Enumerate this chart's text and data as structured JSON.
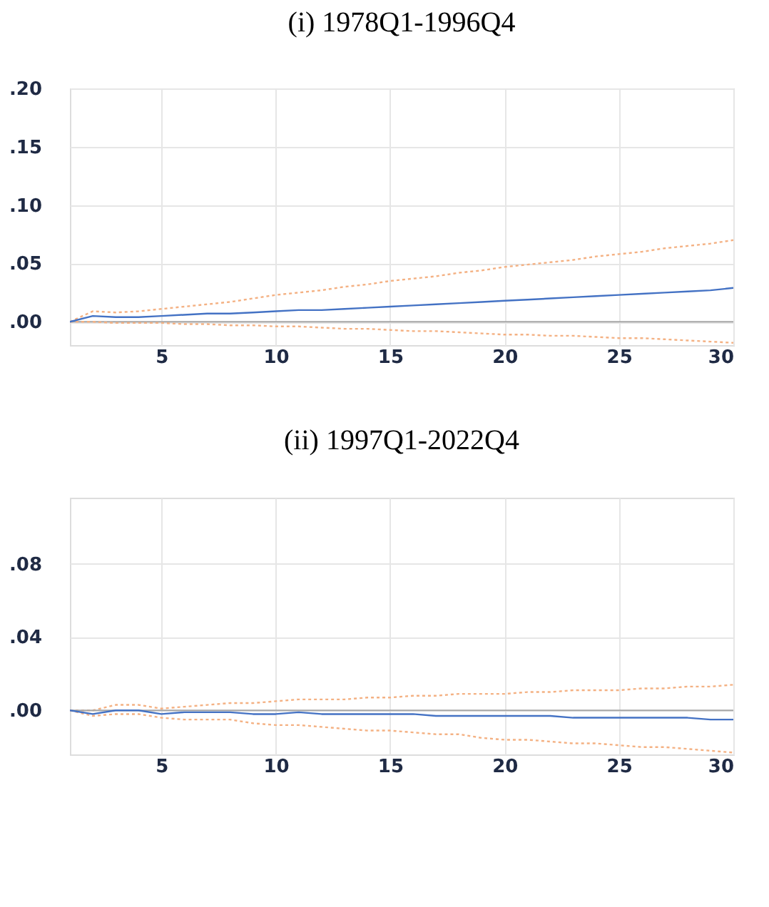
{
  "chart_data": [
    {
      "type": "line",
      "title": "(i) 1978Q1-1996Q4",
      "x": [
        1,
        2,
        3,
        4,
        5,
        6,
        7,
        8,
        9,
        10,
        11,
        12,
        13,
        14,
        15,
        16,
        17,
        18,
        19,
        20,
        21,
        22,
        23,
        24,
        25,
        26,
        27,
        28,
        29,
        30
      ],
      "series": [
        {
          "color": "#f4b183",
          "line_style": "dotted",
          "values": [
            0,
            0.009,
            0.008,
            0.009,
            0.011,
            0.013,
            0.015,
            0.017,
            0.02,
            0.023,
            0.025,
            0.027,
            0.03,
            0.032,
            0.035,
            0.037,
            0.039,
            0.042,
            0.044,
            0.047,
            0.049,
            0.051,
            0.053,
            0.056,
            0.058,
            0.06,
            0.063,
            0.065,
            0.067,
            0.07
          ]
        },
        {
          "color": "#f4b183",
          "line_style": "dotted",
          "values": [
            0,
            0.0,
            -0.001,
            -0.001,
            -0.001,
            -0.002,
            -0.002,
            -0.003,
            -0.003,
            -0.004,
            -0.004,
            -0.005,
            -0.006,
            -0.006,
            -0.007,
            -0.008,
            -0.008,
            -0.009,
            -0.01,
            -0.011,
            -0.011,
            -0.012,
            -0.012,
            -0.013,
            -0.014,
            -0.014,
            -0.015,
            -0.016,
            -0.017,
            -0.018
          ]
        },
        {
          "color": "#4472c4",
          "line_style": "solid",
          "values": [
            0,
            0.005,
            0.004,
            0.004,
            0.005,
            0.006,
            0.007,
            0.007,
            0.008,
            0.009,
            0.01,
            0.01,
            0.011,
            0.012,
            0.013,
            0.014,
            0.015,
            0.016,
            0.017,
            0.018,
            0.019,
            0.02,
            0.021,
            0.022,
            0.023,
            0.024,
            0.025,
            0.026,
            0.027,
            0.029
          ]
        }
      ],
      "xlim": [
        1,
        30
      ],
      "xticks": [
        5,
        10,
        15,
        20,
        25,
        30
      ],
      "ylim": [
        -0.02,
        0.2
      ],
      "yticks": [
        {
          "value": 0,
          "label": ".00"
        },
        {
          "value": 0.05,
          "label": ".05"
        },
        {
          "value": 0.1,
          "label": ".10"
        },
        {
          "value": 0.15,
          "label": ".15"
        },
        {
          "value": 0.2,
          "label": ".20"
        }
      ],
      "ref_lines": [
        {
          "axis": "y",
          "value": 0,
          "color": "#a6a6a6"
        }
      ],
      "grid": true
    },
    {
      "type": "line",
      "title": "(ii) 1997Q1-2022Q4",
      "x": [
        1,
        2,
        3,
        4,
        5,
        6,
        7,
        8,
        9,
        10,
        11,
        12,
        13,
        14,
        15,
        16,
        17,
        18,
        19,
        20,
        21,
        22,
        23,
        24,
        25,
        26,
        27,
        28,
        29,
        30
      ],
      "series": [
        {
          "color": "#f4b183",
          "line_style": "dotted",
          "values": [
            0,
            0.0,
            0.003,
            0.003,
            0.001,
            0.002,
            0.003,
            0.004,
            0.004,
            0.005,
            0.006,
            0.006,
            0.006,
            0.007,
            0.007,
            0.008,
            0.008,
            0.009,
            0.009,
            0.009,
            0.01,
            0.01,
            0.011,
            0.011,
            0.011,
            0.012,
            0.012,
            0.013,
            0.013,
            0.014
          ]
        },
        {
          "color": "#f4b183",
          "line_style": "dotted",
          "values": [
            0,
            -0.003,
            -0.002,
            -0.002,
            -0.004,
            -0.005,
            -0.005,
            -0.005,
            -0.007,
            -0.008,
            -0.008,
            -0.009,
            -0.01,
            -0.011,
            -0.011,
            -0.012,
            -0.013,
            -0.013,
            -0.015,
            -0.016,
            -0.016,
            -0.017,
            -0.018,
            -0.018,
            -0.019,
            -0.02,
            -0.02,
            -0.021,
            -0.022,
            -0.023
          ]
        },
        {
          "color": "#4472c4",
          "line_style": "solid",
          "values": [
            0,
            -0.002,
            0,
            0,
            -0.002,
            -0.001,
            -0.001,
            -0.001,
            -0.002,
            -0.002,
            -0.001,
            -0.002,
            -0.002,
            -0.002,
            -0.002,
            -0.002,
            -0.003,
            -0.003,
            -0.003,
            -0.003,
            -0.003,
            -0.003,
            -0.004,
            -0.004,
            -0.004,
            -0.004,
            -0.004,
            -0.004,
            -0.005,
            -0.005
          ]
        }
      ],
      "xlim": [
        1,
        30
      ],
      "xticks": [
        5,
        10,
        15,
        20,
        25,
        30
      ],
      "ylim": [
        -0.024,
        0.116
      ],
      "yticks": [
        {
          "value": 0,
          "label": ".00"
        },
        {
          "value": 0.04,
          "label": ".04"
        },
        {
          "value": 0.08,
          "label": ".08"
        }
      ],
      "ref_lines": [
        {
          "axis": "y",
          "value": 0,
          "color": "#a6a6a6"
        }
      ],
      "grid": true
    }
  ]
}
